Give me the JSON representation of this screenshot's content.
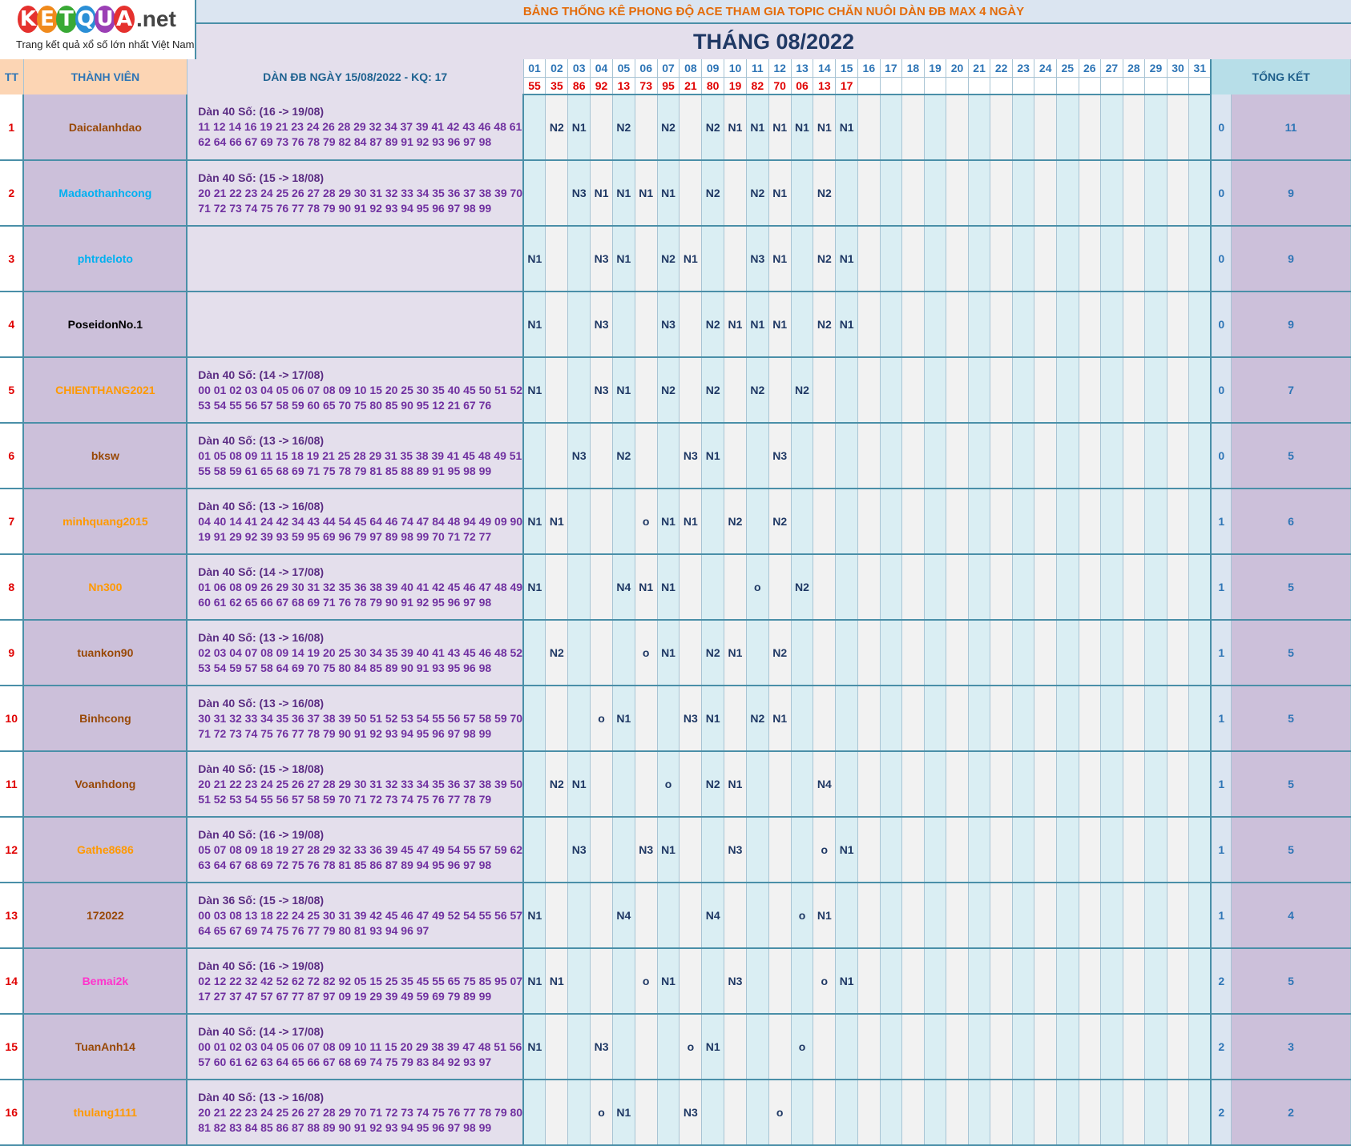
{
  "logo": {
    "letters": [
      "K",
      "E",
      "T",
      "Q",
      "U",
      "A"
    ],
    "colors": [
      "#e5312e",
      "#f08a1c",
      "#39a935",
      "#2b8fd6",
      "#9b3fb5",
      "#e5312e"
    ],
    "net": ".net",
    "tagline": "Trang kết quả xổ số lớn nhất Việt Nam"
  },
  "title": "BẢNG THỐNG KÊ PHONG ĐỘ ACE THAM GIA TOPIC CHĂN NUÔI DÀN ĐB MAX 4 NGÀY",
  "month": "THÁNG 08/2022",
  "headers": {
    "tt": "TT",
    "member": "THÀNH VIÊN",
    "dan": "DÀN ĐB NGÀY 15/08/2022 - KQ: 17",
    "total": "TỔNG KẾT"
  },
  "days": [
    "01",
    "02",
    "03",
    "04",
    "05",
    "06",
    "07",
    "08",
    "09",
    "10",
    "11",
    "12",
    "13",
    "14",
    "15",
    "16",
    "17",
    "18",
    "19",
    "20",
    "21",
    "22",
    "23",
    "24",
    "25",
    "26",
    "27",
    "28",
    "29",
    "30",
    "31"
  ],
  "results": [
    "55",
    "35",
    "86",
    "92",
    "13",
    "73",
    "95",
    "21",
    "80",
    "19",
    "82",
    "70",
    "06",
    "13",
    "17",
    "",
    "",
    "",
    "",
    "",
    "",
    "",
    "",
    "",
    "",
    "",
    "",
    "",
    "",
    "",
    ""
  ],
  "rows": [
    {
      "tt": "1",
      "name": "Daicalanhdao",
      "color": "#984806",
      "dan_title": "Dàn 40 Số: (16 -> 19/08)",
      "dan1": "11 12 14 16 19 21 23 24 26 28 29 32 34 37 39 41 42 43 46 48 61",
      "dan2": "62 64 66 67 69 73 76 78 79 82 84 87 89 91 92 93 96 97 98",
      "marks": [
        "",
        "N2",
        "N1",
        "",
        "N2",
        "",
        "N2",
        "",
        "N2",
        "N1",
        "N1",
        "N1",
        "N1",
        "N1",
        "N1",
        "",
        "",
        "",
        "",
        "",
        "",
        "",
        "",
        "",
        "",
        "",
        "",
        "",
        "",
        "",
        ""
      ],
      "t1": "0",
      "t2": "11"
    },
    {
      "tt": "2",
      "name": "Madaothanhcong",
      "color": "#00b0f0",
      "dan_title": "Dàn 40 Số: (15 -> 18/08)",
      "dan1": "20 21 22 23 24 25 26 27 28 29 30 31 32 33 34 35 36 37 38 39 70",
      "dan2": "71 72 73 74 75 76 77 78 79 90 91 92 93 94 95 96 97 98 99",
      "marks": [
        "",
        "",
        "N3",
        "N1",
        "N1",
        "N1",
        "N1",
        "",
        "N2",
        "",
        "N2",
        "N1",
        "",
        "N2",
        "",
        "",
        "",
        "",
        "",
        "",
        "",
        "",
        "",
        "",
        "",
        "",
        "",
        "",
        "",
        "",
        ""
      ],
      "t1": "0",
      "t2": "9"
    },
    {
      "tt": "3",
      "name": "phtrdeloto",
      "color": "#00b0f0",
      "dan_title": "",
      "dan1": "",
      "dan2": "",
      "marks": [
        "N1",
        "",
        "",
        "N3",
        "N1",
        "",
        "N2",
        "N1",
        "",
        "",
        "N3",
        "N1",
        "",
        "N2",
        "N1",
        "",
        "",
        "",
        "",
        "",
        "",
        "",
        "",
        "",
        "",
        "",
        "",
        "",
        "",
        "",
        ""
      ],
      "t1": "0",
      "t2": "9"
    },
    {
      "tt": "4",
      "name": "PoseidonNo.1",
      "color": "#000000",
      "dan_title": "",
      "dan1": "",
      "dan2": "",
      "marks": [
        "N1",
        "",
        "",
        "N3",
        "",
        "",
        "N3",
        "",
        "N2",
        "N1",
        "N1",
        "N1",
        "",
        "N2",
        "N1",
        "",
        "",
        "",
        "",
        "",
        "",
        "",
        "",
        "",
        "",
        "",
        "",
        "",
        "",
        "",
        ""
      ],
      "t1": "0",
      "t2": "9"
    },
    {
      "tt": "5",
      "name": "CHIENTHANG2021",
      "color": "#ff9900",
      "dan_title": "Dàn 40 Số: (14 -> 17/08)",
      "dan1": "00 01 02 03 04 05 06 07 08 09 10 15 20 25 30 35 40 45 50 51 52",
      "dan2": "53 54 55 56 57 58 59 60 65 70 75 80 85 90 95 12 21 67 76",
      "marks": [
        "N1",
        "",
        "",
        "N3",
        "N1",
        "",
        "N2",
        "",
        "N2",
        "",
        "N2",
        "",
        "N2",
        "",
        "",
        "",
        "",
        "",
        "",
        "",
        "",
        "",
        "",
        "",
        "",
        "",
        "",
        "",
        "",
        "",
        ""
      ],
      "t1": "0",
      "t2": "7"
    },
    {
      "tt": "6",
      "name": "bksw",
      "color": "#984806",
      "dan_title": "Dàn 40 Số: (13 -> 16/08)",
      "dan1": "01 05 08 09 11 15 18 19 21 25 28 29 31 35 38 39 41 45 48 49 51",
      "dan2": "55 58 59 61 65 68 69 71 75 78 79 81 85 88 89 91 95 98 99",
      "marks": [
        "",
        "",
        "N3",
        "",
        "N2",
        "",
        "",
        "N3",
        "N1",
        "",
        "",
        "N3",
        "",
        "",
        "",
        "",
        "",
        "",
        "",
        "",
        "",
        "",
        "",
        "",
        "",
        "",
        "",
        "",
        "",
        "",
        ""
      ],
      "t1": "0",
      "t2": "5"
    },
    {
      "tt": "7",
      "name": "minhquang2015",
      "color": "#ff9900",
      "dan_title": "Dàn 40 Số: (13 -> 16/08)",
      "dan1": "04 40 14 41 24 42 34 43 44 54 45 64 46 74 47 84 48 94 49 09 90",
      "dan2": "19 91 29 92 39 93 59 95 69 96 79 97 89 98 99 70 71 72 77",
      "marks": [
        "N1",
        "N1",
        "",
        "",
        "",
        "o",
        "N1",
        "N1",
        "",
        "N2",
        "",
        "N2",
        "",
        "",
        "",
        "",
        "",
        "",
        "",
        "",
        "",
        "",
        "",
        "",
        "",
        "",
        "",
        "",
        "",
        "",
        ""
      ],
      "t1": "1",
      "t2": "6"
    },
    {
      "tt": "8",
      "name": "Nn300",
      "color": "#ff9900",
      "dan_title": "Dàn 40 Số: (14 -> 17/08)",
      "dan1": "01 06 08 09 26 29 30 31 32 35 36 38 39 40 41 42 45 46 47 48 49",
      "dan2": "60 61 62 65 66 67 68 69 71 76 78 79 90 91 92 95 96 97 98",
      "marks": [
        "N1",
        "",
        "",
        "",
        "N4",
        "N1",
        "N1",
        "",
        "",
        "",
        "o",
        "",
        "N2",
        "",
        "",
        "",
        "",
        "",
        "",
        "",
        "",
        "",
        "",
        "",
        "",
        "",
        "",
        "",
        "",
        "",
        ""
      ],
      "t1": "1",
      "t2": "5"
    },
    {
      "tt": "9",
      "name": "tuankon90",
      "color": "#984806",
      "dan_title": "Dàn 40 Số: (13 -> 16/08)",
      "dan1": "02 03 04 07 08 09 14 19 20 25 30 34 35 39 40 41 43 45 46 48 52",
      "dan2": "53 54 59 57 58 64 69 70 75 80 84 85 89 90 91 93 95 96 98",
      "marks": [
        "",
        "N2",
        "",
        "",
        "",
        "o",
        "N1",
        "",
        "N2",
        "N1",
        "",
        "N2",
        "",
        "",
        "",
        "",
        "",
        "",
        "",
        "",
        "",
        "",
        "",
        "",
        "",
        "",
        "",
        "",
        "",
        "",
        ""
      ],
      "t1": "1",
      "t2": "5"
    },
    {
      "tt": "10",
      "name": "Binhcong",
      "color": "#984806",
      "dan_title": "Dàn 40 Số: (13 -> 16/08)",
      "dan1": "30 31 32 33 34 35 36 37 38 39 50 51 52 53 54 55 56 57 58 59 70",
      "dan2": "71 72 73 74 75 76 77 78 79 90 91 92 93 94 95 96 97 98 99",
      "marks": [
        "",
        "",
        "",
        "o",
        "N1",
        "",
        "",
        "N3",
        "N1",
        "",
        "N2",
        "N1",
        "",
        "",
        "",
        "",
        "",
        "",
        "",
        "",
        "",
        "",
        "",
        "",
        "",
        "",
        "",
        "",
        "",
        "",
        ""
      ],
      "t1": "1",
      "t2": "5"
    },
    {
      "tt": "11",
      "name": "Voanhdong",
      "color": "#984806",
      "dan_title": "Dàn 40 Số: (15 -> 18/08)",
      "dan1": "20 21 22 23 24 25 26 27 28 29 30 31 32 33 34 35 36 37 38 39 50",
      "dan2": "51 52 53 54 55 56 57 58 59 70 71 72 73 74 75 76 77 78 79",
      "marks": [
        "",
        "N2",
        "N1",
        "",
        "",
        "",
        "o",
        "",
        "N2",
        "N1",
        "",
        "",
        "",
        "N4",
        "",
        "",
        "",
        "",
        "",
        "",
        "",
        "",
        "",
        "",
        "",
        "",
        "",
        "",
        "",
        "",
        ""
      ],
      "t1": "1",
      "t2": "5"
    },
    {
      "tt": "12",
      "name": "Gathe8686",
      "color": "#ff9900",
      "dan_title": "Dàn 40 Số: (16 -> 19/08)",
      "dan1": "05 07 08 09 18 19 27 28 29 32 33 36 39 45 47 49 54 55 57 59 62",
      "dan2": "63 64 67 68 69 72 75 76 78 81 85 86 87 89 94 95 96 97 98",
      "marks": [
        "",
        "",
        "N3",
        "",
        "",
        "N3",
        "N1",
        "",
        "",
        "N3",
        "",
        "",
        "",
        "o",
        "N1",
        "",
        "",
        "",
        "",
        "",
        "",
        "",
        "",
        "",
        "",
        "",
        "",
        "",
        "",
        "",
        ""
      ],
      "t1": "1",
      "t2": "5"
    },
    {
      "tt": "13",
      "name": "172022",
      "color": "#984806",
      "dan_title": "Dàn 36 Số: (15 -> 18/08)",
      "dan1": "00 03 08 13 18 22 24 25 30 31 39 42 45 46 47 49 52 54 55 56 57",
      "dan2": "64 65 67 69 74 75 76 77 79 80 81 93 94 96 97",
      "marks": [
        "N1",
        "",
        "",
        "",
        "N4",
        "",
        "",
        "",
        "N4",
        "",
        "",
        "",
        "o",
        "N1",
        "",
        "",
        "",
        "",
        "",
        "",
        "",
        "",
        "",
        "",
        "",
        "",
        "",
        "",
        "",
        "",
        ""
      ],
      "t1": "1",
      "t2": "4"
    },
    {
      "tt": "14",
      "name": "Bemai2k",
      "color": "#ff33cc",
      "dan_title": "Dàn 40 Số: (16 -> 19/08)",
      "dan1": "02 12 22 32 42 52 62 72 82 92 05 15 25 35 45 55 65 75 85 95 07",
      "dan2": "17 27 37 47 57 67 77 87 97 09 19 29 39 49 59 69 79 89 99",
      "marks": [
        "N1",
        "N1",
        "",
        "",
        "",
        "o",
        "N1",
        "",
        "",
        "N3",
        "",
        "",
        "",
        "o",
        "N1",
        "",
        "",
        "",
        "",
        "",
        "",
        "",
        "",
        "",
        "",
        "",
        "",
        "",
        "",
        "",
        ""
      ],
      "t1": "2",
      "t2": "5"
    },
    {
      "tt": "15",
      "name": "TuanAnh14",
      "color": "#984806",
      "dan_title": "Dàn 40 Số: (14 -> 17/08)",
      "dan1": "00 01 02 03 04 05 06 07 08 09 10 11 15 20 29 38 39 47 48 51 56",
      "dan2": "57 60 61 62 63 64 65 66 67 68 69 74 75 79 83 84 92 93 97",
      "marks": [
        "N1",
        "",
        "",
        "N3",
        "",
        "",
        "",
        "o",
        "N1",
        "",
        "",
        "",
        "o",
        "",
        "",
        "",
        "",
        "",
        "",
        "",
        "",
        "",
        "",
        "",
        "",
        "",
        "",
        "",
        "",
        "",
        ""
      ],
      "t1": "2",
      "t2": "3"
    },
    {
      "tt": "16",
      "name": "thulang1111",
      "color": "#ff9900",
      "dan_title": "Dàn 40 Số: (13 -> 16/08)",
      "dan1": "20 21 22 23 24 25 26 27 28 29 70 71 72 73 74 75 76 77 78 79 80",
      "dan2": "81 82 83 84 85 86 87 88 89 90 91 92 93 94 95 96 97 98 99",
      "marks": [
        "",
        "",
        "",
        "o",
        "N1",
        "",
        "",
        "N3",
        "",
        "",
        "",
        "o",
        "",
        "",
        "",
        "",
        "",
        "",
        "",
        "",
        "",
        "",
        "",
        "",
        "",
        "",
        "",
        "",
        "",
        "",
        ""
      ],
      "t1": "2",
      "t2": "2"
    }
  ]
}
